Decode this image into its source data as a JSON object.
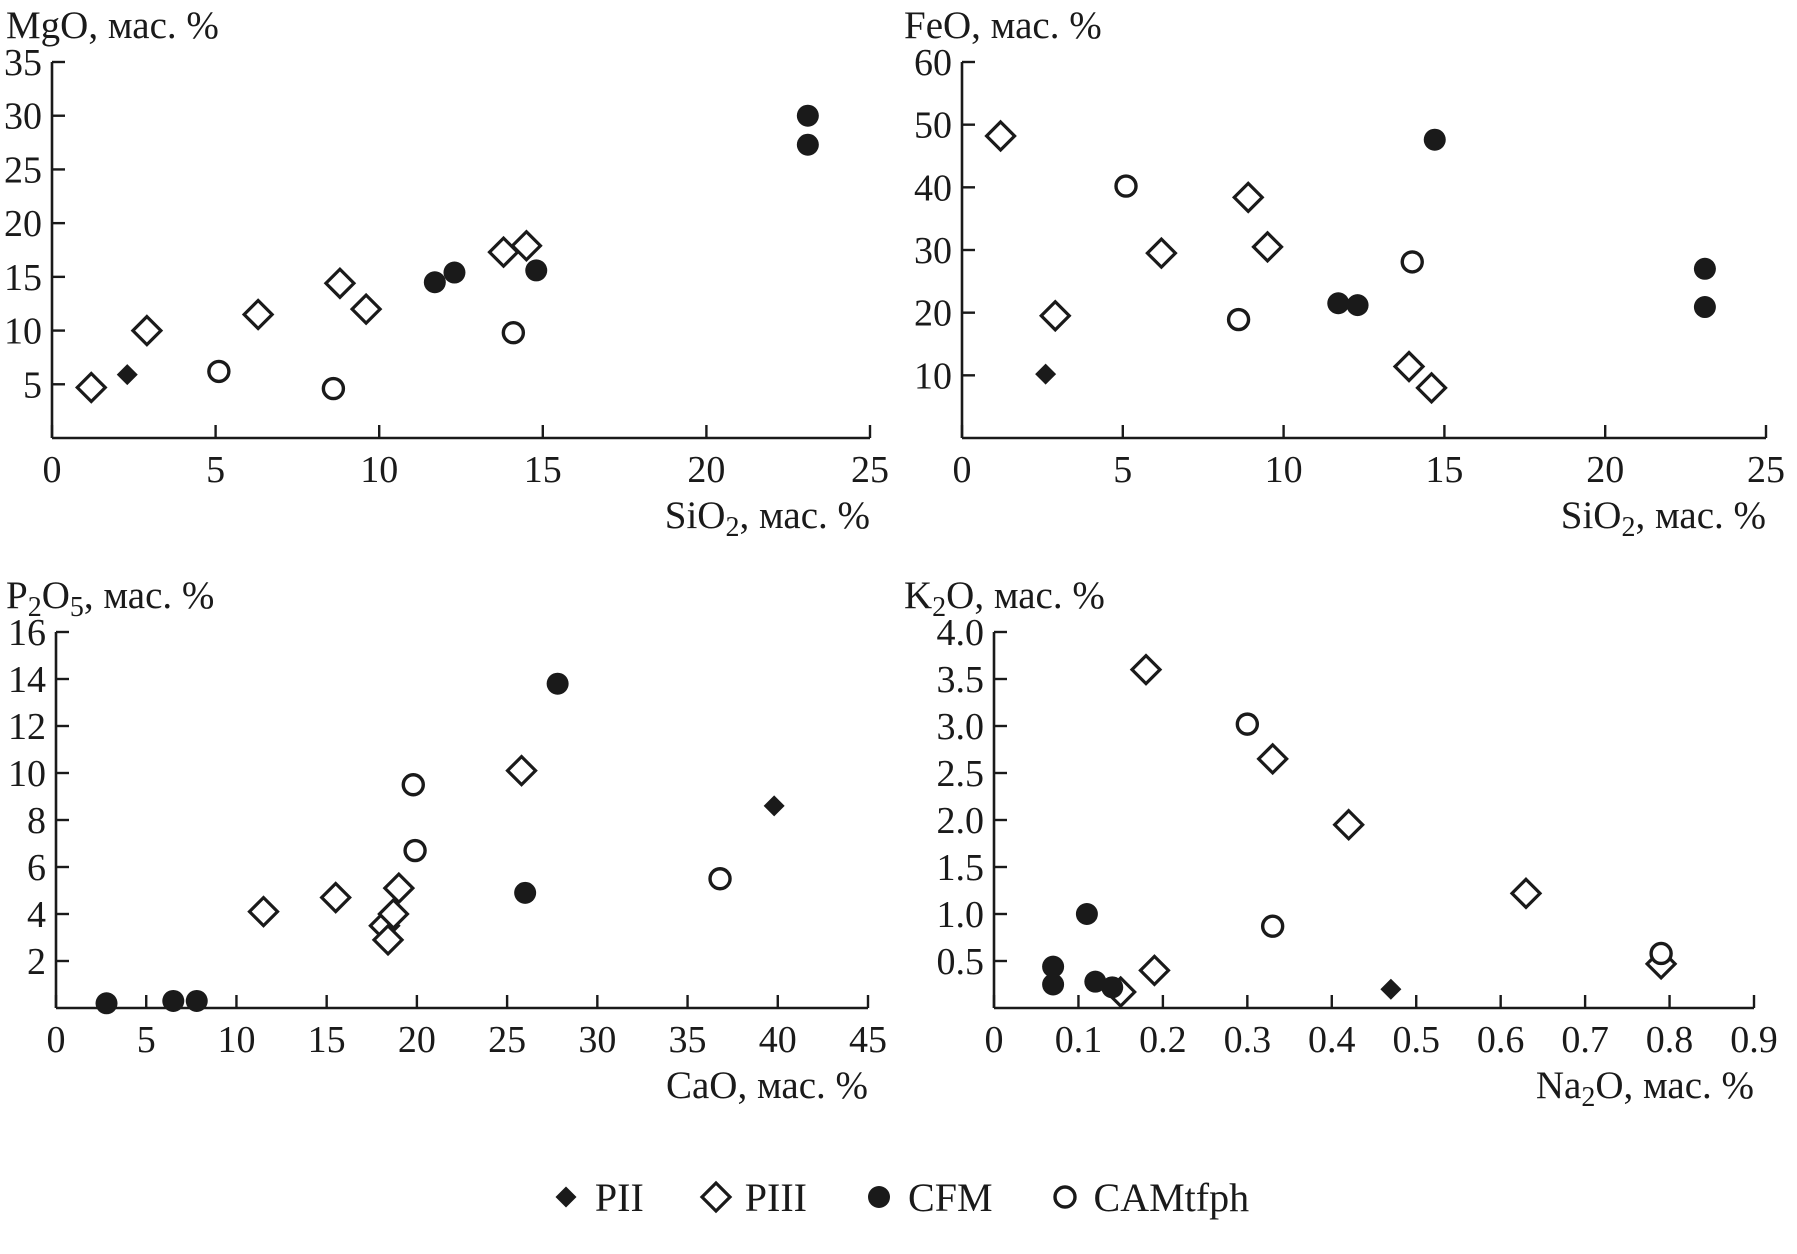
{
  "figure": {
    "background": "#ffffff",
    "ink": "#1a1a1a"
  },
  "legend": {
    "items": [
      {
        "label": "PII",
        "marker": "diamond-filled"
      },
      {
        "label": "PIII",
        "marker": "diamond-open"
      },
      {
        "label": "CFM",
        "marker": "circle-filled"
      },
      {
        "label": "CAMtfph",
        "marker": "circle-open"
      }
    ]
  },
  "chart_data": [
    {
      "id": "mgo-vs-sio2",
      "type": "scatter",
      "title": "",
      "ylabel_segments": [
        {
          "t": "MgO, мас. %"
        }
      ],
      "xlabel_segments": [
        {
          "t": "SiO"
        },
        {
          "t": "2",
          "sub": true
        },
        {
          "t": ", мас. %"
        }
      ],
      "xlim": [
        0,
        25
      ],
      "ylim": [
        0,
        35
      ],
      "grid": false,
      "xtick_values": [
        0,
        5,
        10,
        15,
        20,
        25
      ],
      "xtick_labels": [
        "0",
        "5",
        "10",
        "15",
        "20",
        "25"
      ],
      "ytick_values": [
        5,
        10,
        15,
        20,
        25,
        30,
        35
      ],
      "ytick_labels": [
        "5",
        "10",
        "15",
        "20",
        "25",
        "30",
        "35"
      ],
      "series": [
        {
          "name": "PII",
          "marker": "diamond-filled",
          "points": [
            [
              2.3,
              5.9
            ]
          ]
        },
        {
          "name": "PIII",
          "marker": "diamond-open",
          "points": [
            [
              1.2,
              4.7
            ],
            [
              2.9,
              10.0
            ],
            [
              6.3,
              11.5
            ],
            [
              8.8,
              14.4
            ],
            [
              9.6,
              12.0
            ],
            [
              13.8,
              17.3
            ],
            [
              14.5,
              17.9
            ]
          ]
        },
        {
          "name": "CFM",
          "marker": "circle-filled",
          "points": [
            [
              11.7,
              14.5
            ],
            [
              12.3,
              15.4
            ],
            [
              14.8,
              15.6
            ],
            [
              23.1,
              30.0
            ],
            [
              23.1,
              27.3
            ]
          ]
        },
        {
          "name": "CAMtfph",
          "marker": "circle-open",
          "points": [
            [
              5.1,
              6.2
            ],
            [
              8.6,
              4.6
            ],
            [
              14.1,
              9.8
            ]
          ]
        }
      ]
    },
    {
      "id": "feo-vs-sio2",
      "type": "scatter",
      "title": "",
      "ylabel_segments": [
        {
          "t": "FeO, мас. %"
        }
      ],
      "xlabel_segments": [
        {
          "t": "SiO"
        },
        {
          "t": "2",
          "sub": true
        },
        {
          "t": ", мас. %"
        }
      ],
      "xlim": [
        0,
        25
      ],
      "ylim": [
        0,
        60
      ],
      "grid": false,
      "xtick_values": [
        0,
        5,
        10,
        15,
        20,
        25
      ],
      "xtick_labels": [
        "0",
        "5",
        "10",
        "15",
        "20",
        "25"
      ],
      "ytick_values": [
        10,
        20,
        30,
        40,
        50,
        60
      ],
      "ytick_labels": [
        "10",
        "20",
        "30",
        "40",
        "50",
        "60"
      ],
      "series": [
        {
          "name": "PII",
          "marker": "diamond-filled",
          "points": [
            [
              2.6,
              10.2
            ]
          ]
        },
        {
          "name": "PIII",
          "marker": "diamond-open",
          "points": [
            [
              1.2,
              48.2
            ],
            [
              2.9,
              19.5
            ],
            [
              6.2,
              29.5
            ],
            [
              8.9,
              38.4
            ],
            [
              9.5,
              30.5
            ],
            [
              13.9,
              11.4
            ],
            [
              14.6,
              8.0
            ]
          ]
        },
        {
          "name": "CFM",
          "marker": "circle-filled",
          "points": [
            [
              11.7,
              21.5
            ],
            [
              12.3,
              21.2
            ],
            [
              14.7,
              47.6
            ],
            [
              23.1,
              27.0
            ],
            [
              23.1,
              20.9
            ]
          ]
        },
        {
          "name": "CAMtfph",
          "marker": "circle-open",
          "points": [
            [
              5.1,
              40.2
            ],
            [
              8.6,
              18.9
            ],
            [
              14.0,
              28.1
            ]
          ]
        }
      ]
    },
    {
      "id": "p2o5-vs-cao",
      "type": "scatter",
      "title": "",
      "ylabel_segments": [
        {
          "t": "P"
        },
        {
          "t": "2",
          "sub": true
        },
        {
          "t": "O"
        },
        {
          "t": "5",
          "sub": true
        },
        {
          "t": ", мас. %"
        }
      ],
      "xlabel_segments": [
        {
          "t": "CaO, мас. %"
        }
      ],
      "xlim": [
        0,
        45
      ],
      "ylim": [
        0,
        16
      ],
      "grid": false,
      "xtick_values": [
        0,
        5,
        10,
        15,
        20,
        25,
        30,
        35,
        40,
        45
      ],
      "xtick_labels": [
        "0",
        "5",
        "10",
        "15",
        "20",
        "25",
        "30",
        "35",
        "40",
        "45"
      ],
      "ytick_values": [
        2,
        4,
        6,
        8,
        10,
        12,
        14,
        16
      ],
      "ytick_labels": [
        "2",
        "4",
        "6",
        "8",
        "10",
        "12",
        "14",
        "16"
      ],
      "series": [
        {
          "name": "PII",
          "marker": "diamond-filled",
          "points": [
            [
              39.8,
              8.6
            ]
          ]
        },
        {
          "name": "PIII",
          "marker": "diamond-open",
          "points": [
            [
              11.5,
              4.1
            ],
            [
              15.5,
              4.7
            ],
            [
              18.2,
              3.5
            ],
            [
              18.4,
              2.9
            ],
            [
              18.7,
              4.0
            ],
            [
              19.0,
              5.1
            ],
            [
              25.8,
              10.1
            ]
          ]
        },
        {
          "name": "CFM",
          "marker": "circle-filled",
          "points": [
            [
              2.8,
              0.2
            ],
            [
              6.5,
              0.3
            ],
            [
              7.8,
              0.3
            ],
            [
              26.0,
              4.9
            ],
            [
              27.8,
              13.8
            ]
          ]
        },
        {
          "name": "CAMtfph",
          "marker": "circle-open",
          "points": [
            [
              19.8,
              9.5
            ],
            [
              19.9,
              6.7
            ],
            [
              36.8,
              5.5
            ]
          ]
        }
      ]
    },
    {
      "id": "k2o-vs-na2o",
      "type": "scatter",
      "title": "",
      "ylabel_segments": [
        {
          "t": "K"
        },
        {
          "t": "2",
          "sub": true
        },
        {
          "t": "O, мас. %"
        }
      ],
      "xlabel_segments": [
        {
          "t": "Na"
        },
        {
          "t": "2",
          "sub": true
        },
        {
          "t": "O, мас. %"
        }
      ],
      "xlim": [
        0,
        0.9
      ],
      "ylim": [
        0,
        4.0
      ],
      "grid": false,
      "xtick_values": [
        0,
        0.1,
        0.2,
        0.3,
        0.4,
        0.5,
        0.6,
        0.7,
        0.8,
        0.9
      ],
      "xtick_labels": [
        "0",
        "0.1",
        "0.2",
        "0.3",
        "0.4",
        "0.5",
        "0.6",
        "0.7",
        "0.8",
        "0.9"
      ],
      "ytick_values": [
        0.5,
        1.0,
        1.5,
        2.0,
        2.5,
        3.0,
        3.5,
        4.0
      ],
      "ytick_labels": [
        "0.5",
        "1.0",
        "1.5",
        "2.0",
        "2.5",
        "3.0",
        "3.5",
        "4.0"
      ],
      "series": [
        {
          "name": "PII",
          "marker": "diamond-filled",
          "points": [
            [
              0.47,
              0.2
            ]
          ]
        },
        {
          "name": "PIII",
          "marker": "diamond-open",
          "points": [
            [
              0.15,
              0.17
            ],
            [
              0.18,
              3.6
            ],
            [
              0.19,
              0.4
            ],
            [
              0.33,
              2.65
            ],
            [
              0.42,
              1.95
            ],
            [
              0.63,
              1.22
            ],
            [
              0.79,
              0.47
            ]
          ]
        },
        {
          "name": "CFM",
          "marker": "circle-filled",
          "points": [
            [
              0.07,
              0.44
            ],
            [
              0.07,
              0.25
            ],
            [
              0.11,
              1.0
            ],
            [
              0.12,
              0.28
            ],
            [
              0.14,
              0.22
            ]
          ]
        },
        {
          "name": "CAMtfph",
          "marker": "circle-open",
          "points": [
            [
              0.3,
              3.02
            ],
            [
              0.33,
              0.87
            ],
            [
              0.79,
              0.58
            ]
          ]
        }
      ]
    }
  ]
}
